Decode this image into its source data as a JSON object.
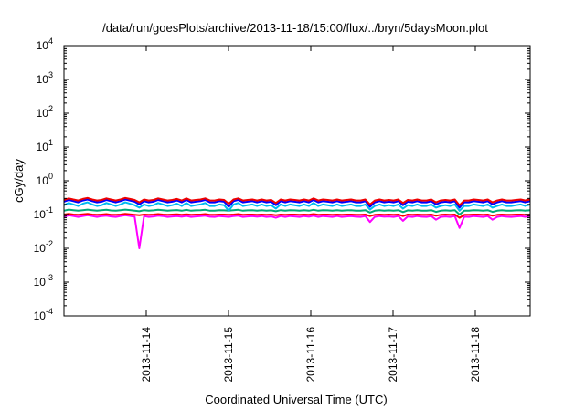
{
  "chart_data": {
    "type": "line",
    "title": "/data/run/goesPlots/archive/2013-11-18/15:00/flux/../bryn/5daysMoon.plot",
    "xlabel": "Coordinated Universal Time (UTC)",
    "ylabel": "cGy/day",
    "yscale": "log",
    "ylim": [
      0.0001,
      10000
    ],
    "xlim": [
      "2013-11-13T00:00",
      "2013-11-18T16:00"
    ],
    "y_ticks": [
      {
        "base": "10",
        "exp": "-4",
        "value": 0.0001
      },
      {
        "base": "10",
        "exp": "-3",
        "value": 0.001
      },
      {
        "base": "10",
        "exp": "-2",
        "value": 0.01
      },
      {
        "base": "10",
        "exp": "-1",
        "value": 0.1
      },
      {
        "base": "10",
        "exp": "0",
        "value": 1
      },
      {
        "base": "10",
        "exp": "1",
        "value": 10
      },
      {
        "base": "10",
        "exp": "2",
        "value": 100
      },
      {
        "base": "10",
        "exp": "3",
        "value": 1000
      },
      {
        "base": "10",
        "exp": "4",
        "value": 10000
      }
    ],
    "x_ticks": [
      "2013-11-14",
      "2013-11-15",
      "2013-11-16",
      "2013-11-17",
      "2013-11-18"
    ],
    "grid": false,
    "legend": "none",
    "series": [
      {
        "color": "#ff00ff",
        "values": [
          0.085,
          0.095,
          0.09,
          0.085,
          0.09,
          0.095,
          0.09,
          0.085,
          0.09,
          0.092,
          0.088,
          0.085,
          0.09,
          0.095,
          0.091,
          0.086,
          0.01,
          0.09,
          0.085,
          0.088,
          0.092,
          0.09,
          0.085,
          0.088,
          0.09,
          0.086,
          0.091,
          0.085,
          0.088,
          0.09,
          0.092,
          0.086,
          0.085,
          0.09,
          0.088,
          0.085,
          0.09,
          0.092,
          0.085,
          0.088,
          0.09,
          0.086,
          0.09,
          0.085,
          0.088,
          0.08,
          0.09,
          0.085,
          0.09,
          0.088,
          0.085,
          0.09,
          0.086,
          0.092,
          0.085,
          0.09,
          0.088,
          0.085,
          0.09,
          0.085,
          0.088,
          0.09,
          0.086,
          0.085,
          0.09,
          0.06,
          0.085,
          0.09,
          0.086,
          0.088,
          0.085,
          0.09,
          0.065,
          0.088,
          0.085,
          0.09,
          0.086,
          0.085,
          0.09,
          0.07,
          0.085,
          0.088,
          0.085,
          0.09,
          0.04,
          0.086,
          0.085,
          0.09,
          0.088,
          0.085,
          0.09,
          0.07,
          0.085,
          0.09,
          0.086,
          0.085,
          0.088,
          0.09,
          0.085,
          0.09
        ]
      },
      {
        "color": "#ff0000",
        "values": [
          0.1,
          0.105,
          0.1,
          0.098,
          0.102,
          0.105,
          0.1,
          0.098,
          0.1,
          0.103,
          0.099,
          0.098,
          0.1,
          0.105,
          0.101,
          0.098,
          0.095,
          0.1,
          0.098,
          0.1,
          0.103,
          0.1,
          0.098,
          0.1,
          0.101,
          0.098,
          0.102,
          0.098,
          0.1,
          0.1,
          0.103,
          0.098,
          0.098,
          0.1,
          0.1,
          0.098,
          0.1,
          0.103,
          0.098,
          0.1,
          0.1,
          0.098,
          0.1,
          0.098,
          0.1,
          0.095,
          0.1,
          0.098,
          0.1,
          0.1,
          0.098,
          0.1,
          0.098,
          0.103,
          0.098,
          0.1,
          0.1,
          0.098,
          0.1,
          0.098,
          0.1,
          0.1,
          0.098,
          0.098,
          0.1,
          0.09,
          0.098,
          0.1,
          0.098,
          0.1,
          0.098,
          0.1,
          0.09,
          0.1,
          0.098,
          0.1,
          0.098,
          0.098,
          0.1,
          0.092,
          0.098,
          0.1,
          0.098,
          0.1,
          0.08,
          0.098,
          0.098,
          0.1,
          0.1,
          0.098,
          0.1,
          0.092,
          0.098,
          0.1,
          0.098,
          0.098,
          0.1,
          0.1,
          0.098,
          0.1
        ]
      },
      {
        "color": "#00aa77",
        "values": [
          0.13,
          0.14,
          0.135,
          0.13,
          0.135,
          0.14,
          0.135,
          0.13,
          0.135,
          0.138,
          0.132,
          0.13,
          0.135,
          0.14,
          0.136,
          0.13,
          0.125,
          0.135,
          0.13,
          0.133,
          0.138,
          0.135,
          0.13,
          0.133,
          0.136,
          0.13,
          0.137,
          0.13,
          0.133,
          0.135,
          0.138,
          0.13,
          0.13,
          0.135,
          0.133,
          0.13,
          0.135,
          0.138,
          0.13,
          0.133,
          0.135,
          0.13,
          0.135,
          0.13,
          0.133,
          0.125,
          0.135,
          0.13,
          0.135,
          0.133,
          0.13,
          0.135,
          0.13,
          0.138,
          0.13,
          0.135,
          0.133,
          0.13,
          0.135,
          0.13,
          0.133,
          0.135,
          0.13,
          0.13,
          0.135,
          0.115,
          0.13,
          0.135,
          0.13,
          0.133,
          0.13,
          0.135,
          0.118,
          0.133,
          0.13,
          0.135,
          0.13,
          0.13,
          0.135,
          0.12,
          0.13,
          0.133,
          0.13,
          0.135,
          0.1,
          0.13,
          0.13,
          0.135,
          0.133,
          0.13,
          0.135,
          0.12,
          0.13,
          0.135,
          0.13,
          0.13,
          0.133,
          0.135,
          0.13,
          0.135
        ]
      },
      {
        "color": "#00bbee",
        "values": [
          0.19,
          0.22,
          0.2,
          0.18,
          0.21,
          0.23,
          0.2,
          0.18,
          0.19,
          0.22,
          0.2,
          0.18,
          0.2,
          0.23,
          0.21,
          0.19,
          0.16,
          0.2,
          0.18,
          0.19,
          0.22,
          0.2,
          0.18,
          0.19,
          0.21,
          0.18,
          0.22,
          0.18,
          0.19,
          0.2,
          0.22,
          0.18,
          0.18,
          0.2,
          0.19,
          0.13,
          0.2,
          0.22,
          0.18,
          0.19,
          0.2,
          0.18,
          0.2,
          0.18,
          0.19,
          0.15,
          0.2,
          0.18,
          0.2,
          0.19,
          0.18,
          0.2,
          0.18,
          0.22,
          0.18,
          0.2,
          0.19,
          0.18,
          0.2,
          0.18,
          0.19,
          0.2,
          0.18,
          0.18,
          0.2,
          0.14,
          0.18,
          0.2,
          0.18,
          0.19,
          0.18,
          0.2,
          0.15,
          0.19,
          0.18,
          0.2,
          0.18,
          0.18,
          0.2,
          0.16,
          0.18,
          0.19,
          0.18,
          0.2,
          0.13,
          0.18,
          0.18,
          0.2,
          0.19,
          0.18,
          0.2,
          0.16,
          0.18,
          0.2,
          0.18,
          0.18,
          0.19,
          0.2,
          0.18,
          0.2
        ]
      },
      {
        "color": "#0000ff",
        "values": [
          0.24,
          0.27,
          0.25,
          0.23,
          0.26,
          0.28,
          0.25,
          0.23,
          0.24,
          0.27,
          0.25,
          0.23,
          0.25,
          0.28,
          0.26,
          0.24,
          0.2,
          0.25,
          0.23,
          0.24,
          0.27,
          0.25,
          0.23,
          0.24,
          0.26,
          0.23,
          0.27,
          0.23,
          0.24,
          0.25,
          0.27,
          0.23,
          0.23,
          0.25,
          0.24,
          0.17,
          0.25,
          0.27,
          0.23,
          0.24,
          0.25,
          0.23,
          0.25,
          0.23,
          0.24,
          0.19,
          0.25,
          0.23,
          0.25,
          0.24,
          0.23,
          0.25,
          0.23,
          0.27,
          0.23,
          0.25,
          0.24,
          0.23,
          0.25,
          0.23,
          0.24,
          0.25,
          0.23,
          0.23,
          0.25,
          0.17,
          0.23,
          0.25,
          0.23,
          0.24,
          0.23,
          0.25,
          0.19,
          0.24,
          0.23,
          0.25,
          0.23,
          0.23,
          0.25,
          0.2,
          0.23,
          0.24,
          0.23,
          0.25,
          0.16,
          0.23,
          0.23,
          0.25,
          0.24,
          0.23,
          0.25,
          0.2,
          0.23,
          0.25,
          0.23,
          0.23,
          0.24,
          0.25,
          0.23,
          0.25
        ]
      },
      {
        "color": "#ee0000",
        "values": [
          0.27,
          0.3,
          0.28,
          0.26,
          0.29,
          0.31,
          0.28,
          0.26,
          0.27,
          0.3,
          0.28,
          0.26,
          0.28,
          0.31,
          0.29,
          0.27,
          0.23,
          0.28,
          0.26,
          0.27,
          0.3,
          0.28,
          0.26,
          0.27,
          0.29,
          0.26,
          0.3,
          0.26,
          0.27,
          0.28,
          0.3,
          0.26,
          0.26,
          0.28,
          0.27,
          0.21,
          0.28,
          0.3,
          0.26,
          0.27,
          0.28,
          0.26,
          0.28,
          0.26,
          0.27,
          0.22,
          0.28,
          0.26,
          0.28,
          0.27,
          0.26,
          0.28,
          0.26,
          0.3,
          0.26,
          0.28,
          0.27,
          0.26,
          0.28,
          0.26,
          0.27,
          0.28,
          0.26,
          0.26,
          0.28,
          0.2,
          0.26,
          0.28,
          0.26,
          0.27,
          0.26,
          0.28,
          0.22,
          0.27,
          0.26,
          0.28,
          0.26,
          0.26,
          0.28,
          0.23,
          0.26,
          0.27,
          0.26,
          0.28,
          0.19,
          0.26,
          0.26,
          0.28,
          0.27,
          0.26,
          0.28,
          0.23,
          0.26,
          0.28,
          0.26,
          0.26,
          0.27,
          0.28,
          0.26,
          0.28
        ]
      }
    ]
  }
}
